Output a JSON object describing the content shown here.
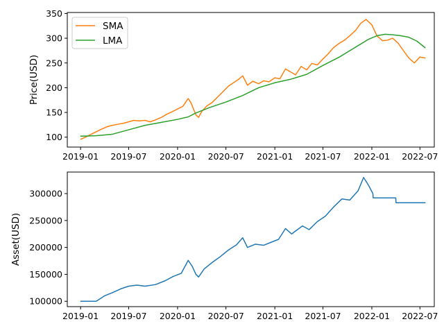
{
  "chart_data": [
    {
      "type": "line",
      "title": "",
      "xlabel": "",
      "ylabel": "Price(USD)",
      "x_ticks": [
        "2019-01",
        "2019-07",
        "2020-01",
        "2020-07",
        "2021-01",
        "2021-07",
        "2022-01",
        "2022-07"
      ],
      "y_ticks": [
        "100",
        "150",
        "200",
        "250",
        "300",
        "350"
      ],
      "ylim": [
        80,
        352
      ],
      "grid": false,
      "legend": "upper-left",
      "series": [
        {
          "name": "SMA",
          "color": "#ff7f0e",
          "x": [
            "2019-01-02",
            "2019-01-20",
            "2019-02-10",
            "2019-03-01",
            "2019-03-20",
            "2019-04-10",
            "2019-05-01",
            "2019-05-20",
            "2019-06-10",
            "2019-07-01",
            "2019-07-20",
            "2019-08-10",
            "2019-09-01",
            "2019-09-20",
            "2019-10-10",
            "2019-11-01",
            "2019-11-20",
            "2019-12-10",
            "2020-01-01",
            "2020-01-20",
            "2020-02-10",
            "2020-02-20",
            "2020-03-10",
            "2020-03-20",
            "2020-04-01",
            "2020-04-20",
            "2020-05-10",
            "2020-06-01",
            "2020-06-20",
            "2020-07-10",
            "2020-08-01",
            "2020-08-20",
            "2020-09-02",
            "2020-09-20",
            "2020-10-10",
            "2020-11-01",
            "2020-11-20",
            "2020-12-10",
            "2021-01-01",
            "2021-01-20",
            "2021-02-10",
            "2021-03-01",
            "2021-03-20",
            "2021-04-10",
            "2021-05-01",
            "2021-05-20",
            "2021-06-10",
            "2021-07-01",
            "2021-07-20",
            "2021-08-10",
            "2021-09-01",
            "2021-09-20",
            "2021-10-10",
            "2021-11-01",
            "2021-11-20",
            "2021-12-10",
            "2022-01-01",
            "2022-01-20",
            "2022-02-10",
            "2022-03-01",
            "2022-03-20",
            "2022-04-10",
            "2022-05-01",
            "2022-05-20",
            "2022-06-10",
            "2022-07-01",
            "2022-07-20"
          ],
          "values": [
            96,
            100,
            106,
            111,
            116,
            121,
            124,
            126,
            128,
            131,
            134,
            133,
            134,
            131,
            135,
            140,
            146,
            151,
            157,
            162,
            178,
            170,
            145,
            140,
            152,
            163,
            170,
            182,
            192,
            203,
            211,
            218,
            224,
            205,
            213,
            208,
            214,
            212,
            220,
            218,
            238,
            232,
            226,
            243,
            236,
            249,
            246,
            258,
            268,
            281,
            290,
            296,
            305,
            316,
            330,
            338,
            327,
            305,
            295,
            296,
            300,
            290,
            274,
            260,
            250,
            262,
            260
          ]
        },
        {
          "name": "LMA",
          "color": "#2ca02c",
          "x": [
            "2019-01-02",
            "2019-03-01",
            "2019-05-01",
            "2019-07-01",
            "2019-09-01",
            "2019-11-01",
            "2020-01-01",
            "2020-02-10",
            "2020-03-10",
            "2020-05-01",
            "2020-07-01",
            "2020-09-01",
            "2020-11-01",
            "2021-01-01",
            "2021-03-01",
            "2021-05-01",
            "2021-07-01",
            "2021-09-01",
            "2021-11-01",
            "2021-12-20",
            "2022-01-20",
            "2022-02-20",
            "2022-03-20",
            "2022-04-20",
            "2022-05-20",
            "2022-06-20",
            "2022-07-20"
          ],
          "values": [
            102,
            103,
            106,
            115,
            124,
            130,
            136,
            141,
            149,
            160,
            171,
            184,
            200,
            210,
            217,
            227,
            245,
            262,
            282,
            298,
            305,
            308,
            307,
            305,
            302,
            294,
            281
          ]
        }
      ]
    },
    {
      "type": "line",
      "title": "",
      "xlabel": "",
      "ylabel": "Asset(USD)",
      "x_ticks": [
        "2019-01",
        "2019-07",
        "2020-01",
        "2020-07",
        "2021-01",
        "2021-07",
        "2022-01",
        "2022-07"
      ],
      "y_ticks": [
        "100000",
        "150000",
        "200000",
        "250000",
        "300000"
      ],
      "ylim": [
        90000,
        340000
      ],
      "grid": false,
      "series": [
        {
          "name": "",
          "color": "#1f77b4",
          "x": [
            "2019-01-02",
            "2019-03-01",
            "2019-04-01",
            "2019-05-01",
            "2019-06-01",
            "2019-07-01",
            "2019-08-01",
            "2019-09-01",
            "2019-10-10",
            "2019-11-15",
            "2019-12-15",
            "2020-01-15",
            "2020-02-10",
            "2020-02-25",
            "2020-03-10",
            "2020-03-20",
            "2020-04-10",
            "2020-05-10",
            "2020-06-10",
            "2020-07-10",
            "2020-08-10",
            "2020-09-02",
            "2020-09-20",
            "2020-10-20",
            "2020-11-20",
            "2020-12-20",
            "2021-01-15",
            "2021-02-10",
            "2021-03-05",
            "2021-04-15",
            "2021-05-10",
            "2021-06-10",
            "2021-07-10",
            "2021-08-10",
            "2021-09-10",
            "2021-10-10",
            "2021-11-10",
            "2021-12-01",
            "2021-12-20",
            "2022-01-05",
            "2022-01-06",
            "2022-02-15",
            "2022-03-15",
            "2022-04-01",
            "2022-04-02",
            "2022-05-15",
            "2022-06-15",
            "2022-07-20"
          ],
          "values": [
            100000,
            100000,
            110000,
            116000,
            123000,
            128000,
            130000,
            128000,
            131000,
            138000,
            146000,
            152000,
            176000,
            165000,
            150000,
            145000,
            160000,
            172000,
            183000,
            195000,
            205000,
            218000,
            200000,
            206000,
            204000,
            210000,
            215000,
            235000,
            225000,
            240000,
            233000,
            248000,
            258000,
            275000,
            290000,
            288000,
            305000,
            330000,
            315000,
            300000,
            292000,
            292000,
            292000,
            292000,
            283000,
            283000,
            283000,
            283000
          ]
        }
      ]
    }
  ]
}
